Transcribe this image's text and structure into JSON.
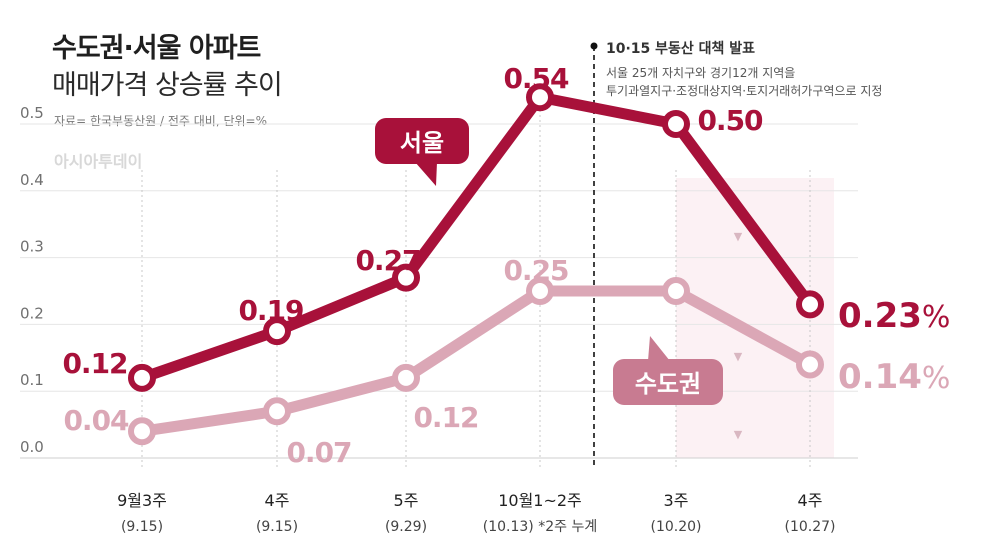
{
  "header": {
    "title_line1": "수도권·서울 아파트",
    "title_line2": "매매가격 상승률 추이",
    "source": "자료= 한국부동산원 / 전주 대비, 단위=%",
    "brand": "아시아투데이"
  },
  "event": {
    "title": "10·15 부동산 대책 발표",
    "line1": "서울 25개 자치구와 경기12개 지역을",
    "line2": "투기과열지구·조정대상지역·토지거래허가구역으로 지정"
  },
  "chart_data": {
    "type": "line",
    "categories": [
      "9월3주",
      "4주",
      "5주",
      "10월1~2주",
      "3주",
      "4주"
    ],
    "category_dates": [
      "(9.15)",
      "(9.15)",
      "(9.29)",
      "(10.13) *2주 누계",
      "(10.20)",
      "(10.27)"
    ],
    "y_ticks": [
      "0.0",
      "0.1",
      "0.2",
      "0.3",
      "0.4",
      "0.5"
    ],
    "ylim": [
      0,
      0.5
    ],
    "grid": true,
    "series": [
      {
        "name": "서울",
        "color": "#a8113a",
        "values": [
          0.12,
          0.19,
          0.27,
          0.54,
          0.5,
          0.23
        ],
        "labels": [
          "0.12",
          "0.19",
          "0.27",
          "0.54",
          "0.50",
          "0.23"
        ]
      },
      {
        "name": "수도권",
        "color": "#dba7b6",
        "values": [
          0.04,
          0.07,
          0.12,
          0.25,
          0.25,
          0.14
        ],
        "labels": [
          "0.04",
          "0.07",
          "0.12",
          "0.25",
          "",
          "0.14"
        ]
      }
    ],
    "last_value_unit": "%",
    "event_marker_after_category": "10월1~2주",
    "arrow_glyph": "▼"
  }
}
